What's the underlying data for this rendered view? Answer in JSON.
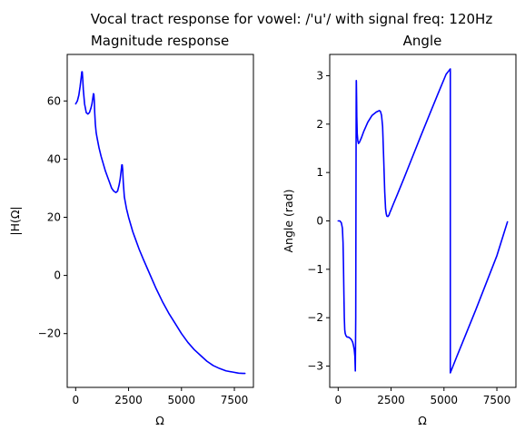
{
  "suptitle": "Vocal tract response for vowel: /'u'/ with signal freq: 120Hz",
  "colors": {
    "line": "#0000ff"
  },
  "chart_data": [
    {
      "type": "line",
      "title": "Magnitude response",
      "xlabel": "Ω",
      "ylabel": "|H(Ω|",
      "xlim": [
        -400,
        8400
      ],
      "ylim": [
        -38.5,
        76
      ],
      "xticks": [
        0,
        2500,
        5000,
        7500
      ],
      "xtick_labels": [
        "0",
        "2500",
        "5000",
        "7500"
      ],
      "yticks": [
        -20,
        0,
        20,
        40,
        60
      ],
      "ytick_labels": [
        "−20",
        "0",
        "20",
        "40",
        "60"
      ],
      "grid": false,
      "series": [
        {
          "color": "#0000ff",
          "x": [
            0,
            80,
            150,
            210,
            260,
            290,
            310,
            330,
            360,
            420,
            500,
            580,
            650,
            720,
            770,
            810,
            840,
            860,
            880,
            900,
            930,
            970,
            1020,
            1100,
            1200,
            1300,
            1400,
            1500,
            1600,
            1700,
            1800,
            1900,
            1980,
            2050,
            2100,
            2150,
            2180,
            2200,
            2220,
            2250,
            2300,
            2400,
            2500,
            2600,
            2700,
            2800,
            3000,
            3200,
            3500,
            3800,
            4100,
            4400,
            4700,
            5000,
            5300,
            5600,
            5900,
            6200,
            6500,
            6800,
            7100,
            7400,
            7700,
            7900,
            8000
          ],
          "y": [
            59,
            60,
            62,
            65,
            68,
            70,
            70,
            68,
            64,
            59,
            56,
            55.5,
            56,
            57.5,
            59,
            61,
            62.5,
            62.3,
            60,
            56,
            52,
            49,
            47,
            44,
            41,
            38.5,
            36,
            34,
            32,
            30,
            29,
            28.5,
            29,
            31,
            33,
            36,
            38,
            38,
            36.5,
            32,
            27,
            23,
            20,
            17.5,
            15,
            13,
            9,
            5.5,
            0.5,
            -4.5,
            -9,
            -13,
            -16.5,
            -20,
            -23,
            -25.5,
            -27.5,
            -29.5,
            -31,
            -32,
            -32.8,
            -33.2,
            -33.6,
            -33.7,
            -33.7
          ]
        }
      ]
    },
    {
      "type": "line",
      "title": "Angle",
      "xlabel": "Ω",
      "ylabel": "Angle (rad)",
      "xlim": [
        -400,
        8400
      ],
      "ylim": [
        -3.44,
        3.44
      ],
      "xticks": [
        0,
        2500,
        5000,
        7500
      ],
      "xtick_labels": [
        "0",
        "2500",
        "5000",
        "7500"
      ],
      "yticks": [
        -3,
        -2,
        -1,
        0,
        1,
        2,
        3
      ],
      "ytick_labels": [
        "−3",
        "−2",
        "−1",
        "0",
        "1",
        "2",
        "3"
      ],
      "grid": false,
      "series": [
        {
          "color": "#0000ff",
          "x": [
            0,
            80,
            150,
            200,
            230,
            250,
            270,
            290,
            310,
            330,
            350,
            380,
            420,
            480,
            550,
            620,
            680,
            720,
            760,
            790,
            810,
            830,
            840,
            850,
            855,
            860,
            870,
            880,
            900,
            930,
            960,
            1000,
            1100,
            1200,
            1400,
            1600,
            1800,
            1950,
            2000,
            2050,
            2100,
            2150,
            2200,
            2240,
            2270,
            2300,
            2350,
            2400,
            2450,
            2500,
            2600,
            2800,
            3100,
            3500,
            3900,
            4300,
            4700,
            5100,
            5300,
            5300,
            5600,
            6000,
            6500,
            7000,
            7500,
            8000
          ],
          "y": [
            0,
            0,
            -0.04,
            -0.15,
            -0.45,
            -0.9,
            -1.5,
            -2.0,
            -2.25,
            -2.32,
            -2.35,
            -2.38,
            -2.4,
            -2.4,
            -2.42,
            -2.45,
            -2.5,
            -2.57,
            -2.66,
            -2.8,
            -3.1,
            -2.0,
            0.3,
            2.3,
            2.9,
            2.88,
            2.55,
            2.15,
            1.8,
            1.65,
            1.6,
            1.62,
            1.72,
            1.84,
            2.04,
            2.18,
            2.25,
            2.28,
            2.26,
            2.18,
            1.95,
            1.3,
            0.6,
            0.25,
            0.15,
            0.1,
            0.09,
            0.12,
            0.18,
            0.23,
            0.34,
            0.55,
            0.87,
            1.31,
            1.75,
            2.18,
            2.61,
            3.03,
            3.14,
            -3.14,
            -2.81,
            -2.38,
            -1.84,
            -1.28,
            -0.72,
            -0.02
          ]
        }
      ]
    }
  ]
}
